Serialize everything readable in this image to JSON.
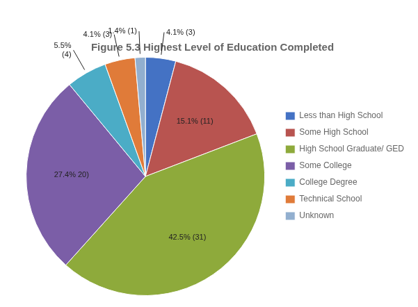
{
  "chart_data": {
    "type": "pie",
    "title": "Figure 5.3 Highest Level of Education Completed",
    "categories": [
      "Less than High School",
      "Some High School",
      "High School Graduate/ GED",
      "Some College",
      "College Degree",
      "Technical School",
      "Unknown"
    ],
    "values": [
      4.1,
      15.1,
      42.5,
      27.4,
      5.5,
      4.1,
      1.4
    ],
    "value_labels": [
      "4.1% (3)",
      "15.1% (11)",
      "42.5% (31)",
      "27.4% 20)",
      "5.5%\n(4)",
      "4.1% (3)",
      "1.4% (1)"
    ],
    "colors": [
      "#4472C4",
      "#B85450",
      "#8EAA3B",
      "#7B5EA7",
      "#4BACC6",
      "#E07B39",
      "#92AFCF"
    ],
    "legend": "right",
    "data_labels": true
  }
}
